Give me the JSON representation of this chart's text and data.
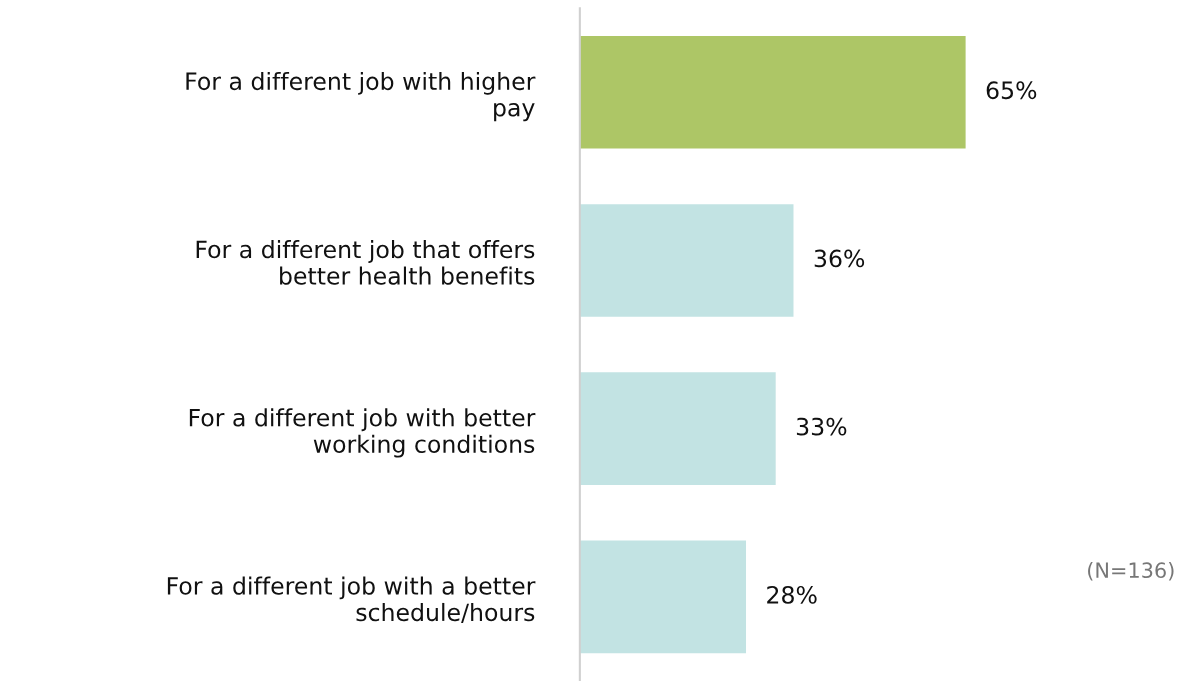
{
  "chart_data": {
    "type": "bar",
    "orientation": "horizontal",
    "categories": [
      "For a different job with higher\npay",
      "For a different job that offers\nbetter health benefits",
      "For a different job with better\nworking conditions",
      "For a different job with a better\nschedule/hours"
    ],
    "values": [
      65,
      36,
      33,
      28
    ],
    "colors": [
      "#adc666",
      "#c2e3e3",
      "#c2e3e3",
      "#c2e3e3"
    ],
    "value_labels": [
      "65%",
      "36%",
      "33%",
      "28%"
    ],
    "annotations": [
      "(N=136)"
    ],
    "grid": false,
    "legend": false,
    "tick_labels": "y"
  }
}
